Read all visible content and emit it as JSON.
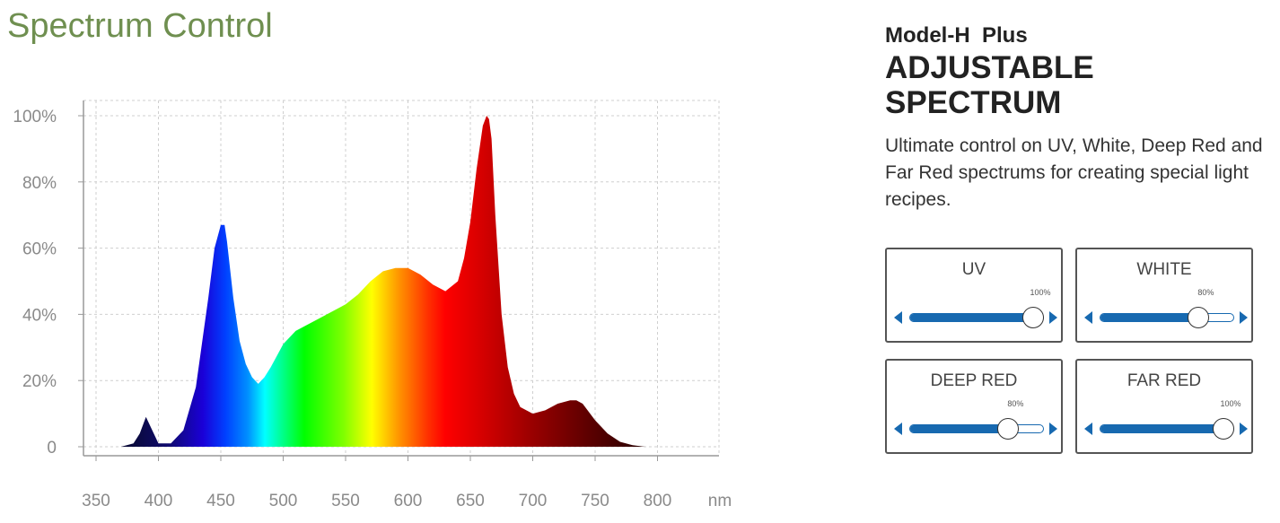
{
  "page": {
    "title": "Spectrum Control"
  },
  "product": {
    "model": "Model-H  Plus",
    "headline": "ADJUSTABLE SPECTRUM",
    "description": "Ultimate control on UV, White, Deep Red and Far Red spectrums for creating special light recipes."
  },
  "sliders": [
    {
      "id": "uv",
      "label": "UV",
      "value": 100,
      "value_text": "100%"
    },
    {
      "id": "white",
      "label": "WHITE",
      "value": 80,
      "value_text": "80%"
    },
    {
      "id": "deep-red",
      "label": "DEEP RED",
      "value": 80,
      "value_text": "80%"
    },
    {
      "id": "far-red",
      "label": "FAR RED",
      "value": 100,
      "value_text": "100%"
    }
  ],
  "colors": {
    "title": "#6f8f50",
    "accent": "#1769b0"
  },
  "chart_data": {
    "type": "area",
    "x_unit": "nm",
    "x_ticks": [
      350,
      400,
      450,
      500,
      550,
      600,
      650,
      700,
      750,
      800
    ],
    "y_ticks": [
      0,
      20,
      40,
      60,
      80,
      100
    ],
    "y_tick_labels": [
      "0",
      "20%",
      "40%",
      "60%",
      "80%",
      "100%"
    ],
    "xlim": [
      345,
      800
    ],
    "ylim": [
      0,
      105
    ],
    "grid": true,
    "x": [
      350,
      370,
      380,
      385,
      390,
      395,
      400,
      410,
      420,
      430,
      440,
      445,
      450,
      453,
      455,
      460,
      465,
      470,
      475,
      480,
      485,
      490,
      500,
      510,
      520,
      530,
      550,
      560,
      570,
      580,
      590,
      600,
      610,
      620,
      630,
      640,
      645,
      650,
      655,
      660,
      663,
      665,
      667,
      670,
      675,
      680,
      685,
      690,
      700,
      710,
      720,
      730,
      735,
      740,
      750,
      760,
      770,
      780,
      790,
      800
    ],
    "y": [
      0,
      0,
      1,
      4,
      9,
      5,
      1,
      1,
      5,
      18,
      45,
      60,
      67,
      67,
      62,
      45,
      32,
      25,
      21,
      19,
      21,
      24,
      31,
      35,
      37,
      39,
      43,
      46,
      50,
      53,
      54,
      54,
      52,
      49,
      47,
      50,
      57,
      68,
      84,
      97,
      100,
      99,
      93,
      70,
      40,
      24,
      16,
      12,
      10,
      11,
      13,
      14,
      14,
      13,
      8,
      4,
      1.5,
      0.5,
      0,
      0
    ]
  }
}
